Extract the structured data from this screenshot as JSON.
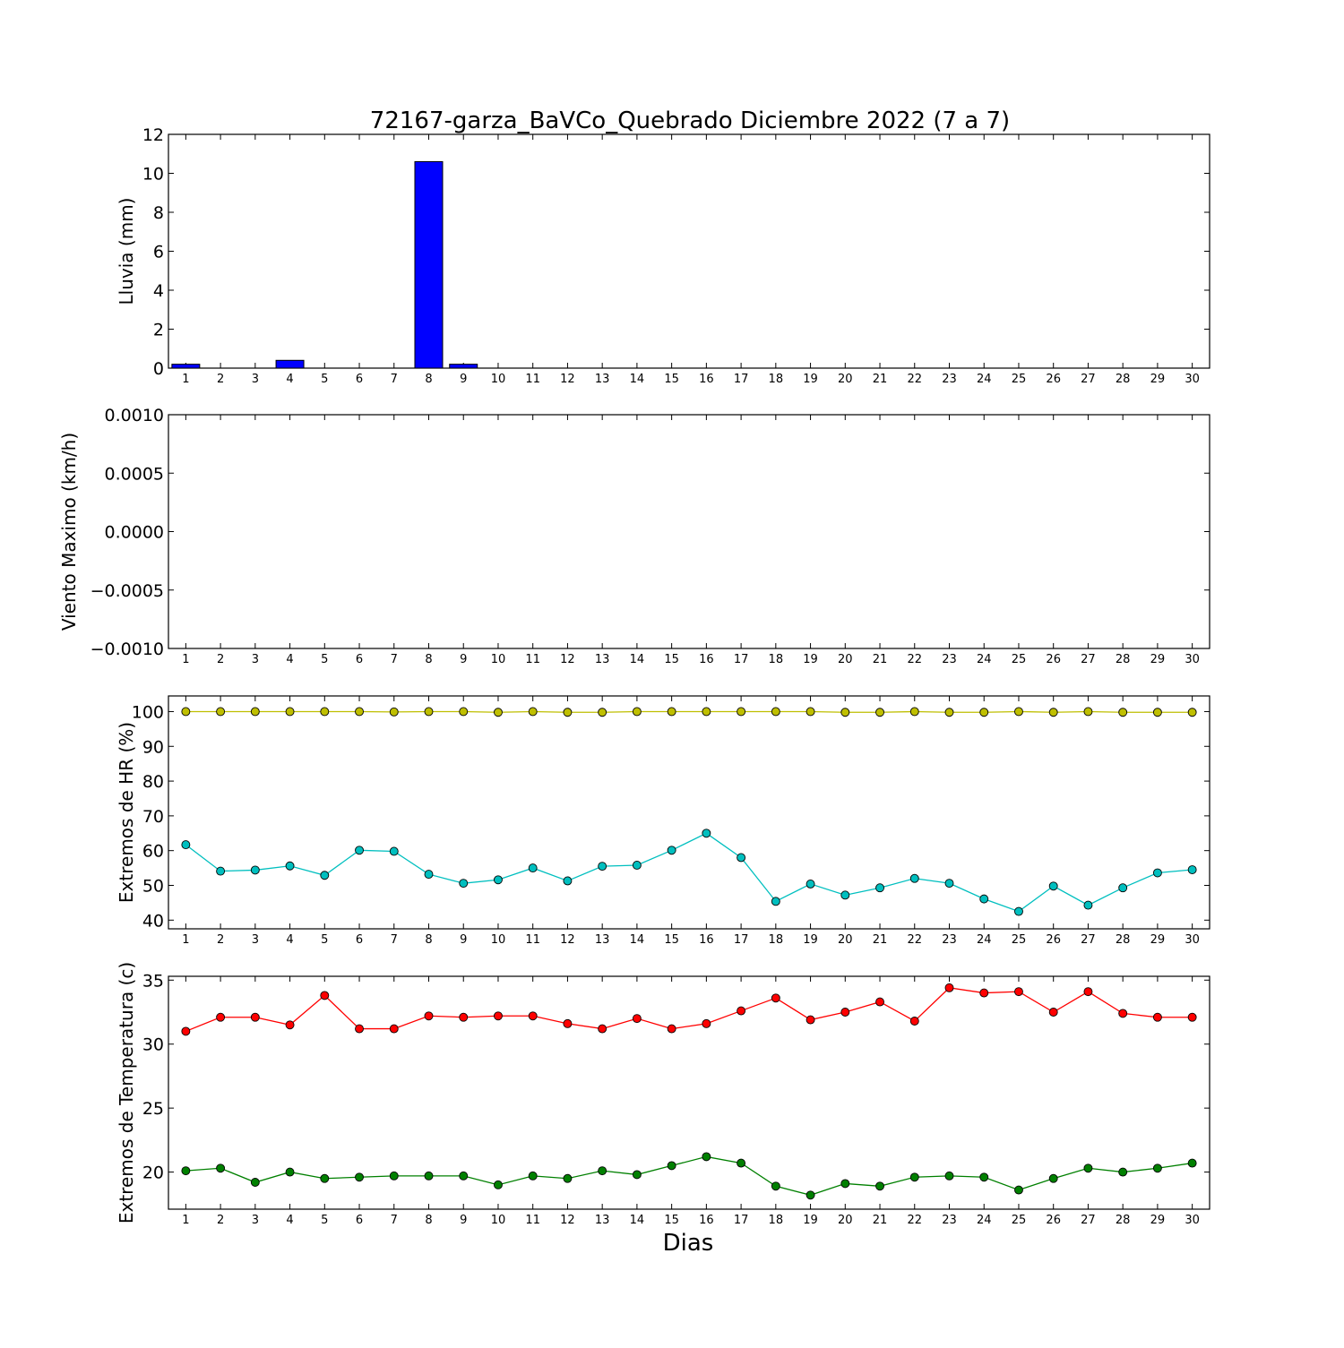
{
  "figure": {
    "title": "72167-garza_BaVCo_Quebrado Diciembre 2022  (7 a 7)",
    "xlabel": "Dias"
  },
  "chart_data": [
    {
      "type": "bar",
      "ylabel": "Lluvia (mm)",
      "x": [
        1,
        2,
        3,
        4,
        5,
        6,
        7,
        8,
        9,
        10,
        11,
        12,
        13,
        14,
        15,
        16,
        17,
        18,
        19,
        20,
        21,
        22,
        23,
        24,
        25,
        26,
        27,
        28,
        29,
        30
      ],
      "ylim": [
        0,
        12
      ],
      "yticks": [
        0,
        2,
        4,
        6,
        8,
        10,
        12
      ],
      "series": [
        {
          "color": "#0000ff",
          "values": [
            0.2,
            0,
            0,
            0.4,
            0,
            0,
            0,
            10.6,
            0.2,
            0,
            0,
            0,
            0,
            0,
            0,
            0,
            0,
            0,
            0,
            0,
            0,
            0,
            0,
            0,
            0,
            0,
            0,
            0,
            0,
            0
          ]
        }
      ]
    },
    {
      "type": "line",
      "ylabel": "Viento Maximo (km/h)",
      "x": [
        1,
        2,
        3,
        4,
        5,
        6,
        7,
        8,
        9,
        10,
        11,
        12,
        13,
        14,
        15,
        16,
        17,
        18,
        19,
        20,
        21,
        22,
        23,
        24,
        25,
        26,
        27,
        28,
        29,
        30
      ],
      "ylim": [
        -0.001,
        0.001
      ],
      "yticks": [
        "−0.0010",
        "−0.0005",
        "0.0000",
        "0.0005",
        "0.0010"
      ],
      "series": []
    },
    {
      "type": "line",
      "ylabel": "Extremos de HR (%)",
      "x": [
        1,
        2,
        3,
        4,
        5,
        6,
        7,
        8,
        9,
        10,
        11,
        12,
        13,
        14,
        15,
        16,
        17,
        18,
        19,
        20,
        21,
        22,
        23,
        24,
        25,
        26,
        27,
        28,
        29,
        30
      ],
      "ylim": [
        37.5,
        104.5
      ],
      "yticks": [
        40,
        50,
        60,
        70,
        80,
        90,
        100
      ],
      "series": [
        {
          "color": "#bfbf00",
          "values": [
            100,
            100,
            100,
            100,
            100,
            100,
            99.9,
            100,
            100,
            99.8,
            100,
            99.8,
            99.8,
            100,
            100,
            100,
            100,
            100,
            100,
            99.8,
            99.8,
            100,
            99.8,
            99.8,
            100,
            99.8,
            100,
            99.8,
            99.8,
            99.8
          ]
        },
        {
          "color": "#00bfbf",
          "values": [
            61.7,
            54.1,
            54.4,
            55.6,
            52.9,
            60.1,
            59.8,
            53.2,
            50.6,
            51.6,
            55,
            51.3,
            55.5,
            55.8,
            60.1,
            65,
            58,
            45.4,
            50.4,
            47.2,
            49.3,
            52,
            50.6,
            46.1,
            42.5,
            49.8,
            44.3,
            49.3,
            53.6,
            54.5
          ]
        }
      ]
    },
    {
      "type": "line",
      "ylabel": "Extremos de Temperatura (c)",
      "x": [
        1,
        2,
        3,
        4,
        5,
        6,
        7,
        8,
        9,
        10,
        11,
        12,
        13,
        14,
        15,
        16,
        17,
        18,
        19,
        20,
        21,
        22,
        23,
        24,
        25,
        26,
        27,
        28,
        29,
        30
      ],
      "ylim": [
        17.1,
        35.3
      ],
      "yticks": [
        20,
        25,
        30,
        35
      ],
      "series": [
        {
          "color": "#ff0000",
          "values": [
            31,
            32.1,
            32.1,
            31.5,
            33.8,
            31.2,
            31.2,
            32.2,
            32.1,
            32.2,
            32.2,
            31.6,
            31.2,
            32,
            31.2,
            31.6,
            32.6,
            33.6,
            31.9,
            32.5,
            33.3,
            31.8,
            34.4,
            34,
            34.1,
            32.5,
            34.1,
            32.4,
            32.1,
            32.1
          ]
        },
        {
          "color": "#008000",
          "values": [
            20.1,
            20.3,
            19.2,
            20,
            19.5,
            19.6,
            19.7,
            19.7,
            19.7,
            19,
            19.7,
            19.5,
            20.1,
            19.8,
            20.5,
            21.2,
            20.7,
            18.9,
            18.2,
            19.1,
            18.9,
            19.6,
            19.7,
            19.6,
            18.6,
            19.5,
            20.3,
            20,
            20.3,
            20.7
          ]
        }
      ]
    }
  ]
}
